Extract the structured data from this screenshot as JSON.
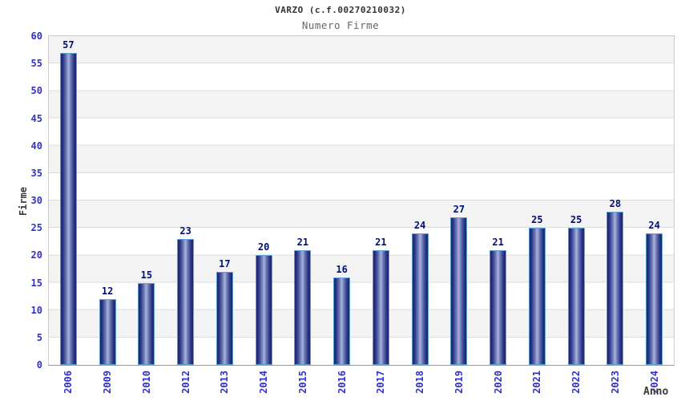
{
  "header": {
    "title": "VARZO (c.f.00270210032)",
    "subtitle": "Numero Firme"
  },
  "chart_data": {
    "type": "bar",
    "title": "VARZO (c.f.00270210032)",
    "subtitle": "Numero Firme",
    "xlabel": "Anno",
    "ylabel": "Firme",
    "categories": [
      "2006",
      "2009",
      "2010",
      "2012",
      "2013",
      "2014",
      "2015",
      "2016",
      "2017",
      "2018",
      "2019",
      "2020",
      "2021",
      "2022",
      "2023",
      "2024"
    ],
    "values": [
      57,
      12,
      15,
      23,
      17,
      20,
      21,
      16,
      21,
      24,
      27,
      21,
      25,
      25,
      28,
      24
    ],
    "ylim": [
      0,
      60
    ],
    "ytick_step": 5,
    "grid": true,
    "band_shading": true,
    "legend_position": "none",
    "bar_value_labels": true
  },
  "colors": {
    "title_text": "#333333",
    "subtitle_text": "#666666",
    "axis_title_text": "#3a3a3a",
    "tick_label": "#3030cc",
    "value_label": "#000f78",
    "bar_edge_dark": "#18246f",
    "bar_center_light": "#a9b2dc",
    "bar_border": "#5b9fd6",
    "band_gray": "#f3f3f3",
    "gridline": "#dcdcdc",
    "plot_border": "#cccccc",
    "baseline": "#999999"
  }
}
